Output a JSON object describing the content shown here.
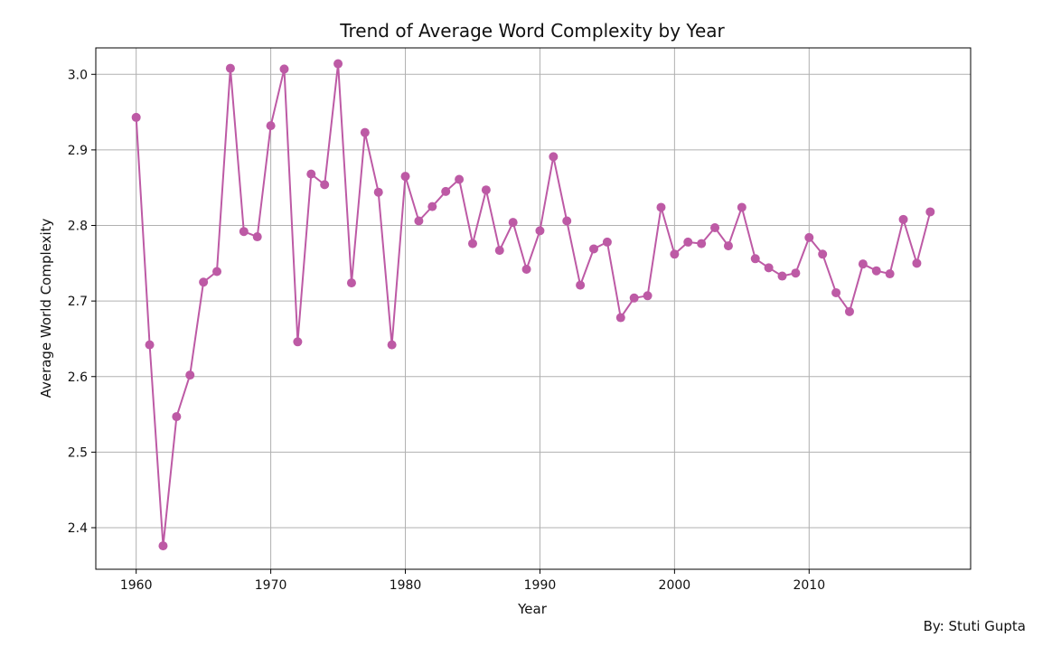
{
  "chart_data": {
    "type": "line",
    "title": "Trend of Average Word Complexity by Year",
    "xlabel": "Year",
    "ylabel": "Average World Complexity",
    "xlim": [
      1957,
      2022
    ],
    "ylim": [
      2.345,
      3.035
    ],
    "xticks": [
      1960,
      1970,
      1980,
      1990,
      2000,
      2010
    ],
    "yticks": [
      2.4,
      2.5,
      2.6,
      2.7,
      2.8,
      2.9,
      3.0
    ],
    "ytick_labels": [
      "2.4",
      "2.5",
      "2.6",
      "2.7",
      "2.8",
      "2.9",
      "3.0"
    ],
    "grid": true,
    "series_color": "#bd5aa5",
    "series": [
      {
        "x": [
          1960,
          1961,
          1962,
          1963,
          1964,
          1965,
          1966,
          1967,
          1968,
          1969,
          1970,
          1971,
          1972,
          1973,
          1974,
          1975,
          1976,
          1977,
          1978,
          1979,
          1980,
          1981,
          1982,
          1983,
          1984,
          1985,
          1986,
          1987,
          1988,
          1989,
          1990,
          1991,
          1992,
          1993,
          1994,
          1995,
          1996,
          1997,
          1998,
          1999,
          2000,
          2001,
          2002,
          2003,
          2004,
          2005,
          2006,
          2007,
          2008,
          2009,
          2010,
          2011,
          2012,
          2013,
          2014,
          2015,
          2016,
          2017,
          2018,
          2019
        ],
        "values": [
          2.943,
          2.642,
          2.376,
          2.547,
          2.602,
          2.725,
          2.739,
          3.008,
          2.792,
          2.785,
          2.932,
          3.007,
          2.646,
          2.868,
          2.854,
          3.014,
          2.724,
          2.923,
          2.844,
          2.642,
          2.865,
          2.806,
          2.825,
          2.845,
          2.861,
          2.776,
          2.847,
          2.767,
          2.804,
          2.742,
          2.793,
          2.891,
          2.806,
          2.721,
          2.769,
          2.778,
          2.678,
          2.704,
          2.707,
          2.824,
          2.762,
          2.778,
          2.776,
          2.797,
          2.773,
          2.824,
          2.756,
          2.744,
          2.733,
          2.737,
          2.784,
          2.762,
          2.711,
          2.686,
          2.749,
          2.74,
          2.736,
          2.808,
          2.75,
          2.818
        ]
      }
    ]
  },
  "footer": {
    "credit": "By: Stuti Gupta"
  }
}
